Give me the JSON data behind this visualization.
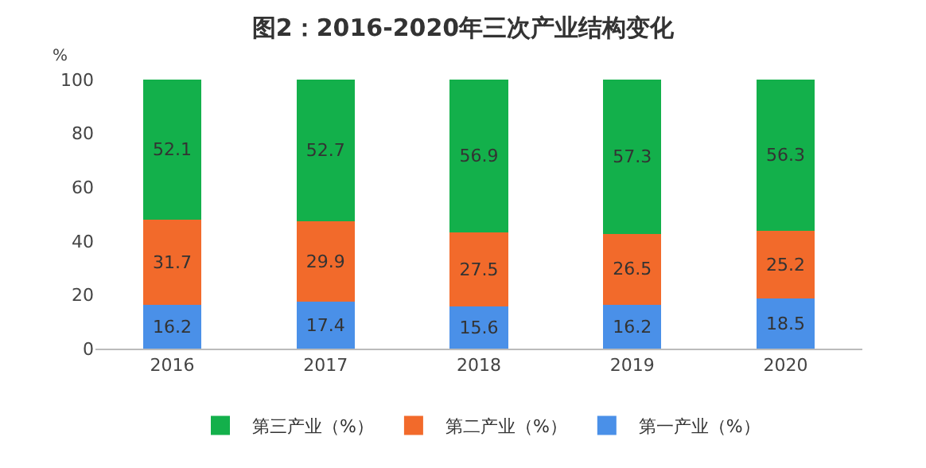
{
  "chart_data": {
    "type": "bar",
    "title": "图2：2016-2020年三次产业结构变化",
    "ylabel": "%",
    "categories": [
      "2016",
      "2017",
      "2018",
      "2019",
      "2020"
    ],
    "series": [
      {
        "name": "第一产业（%）",
        "color": "#4a90e8",
        "values": [
          16.2,
          17.4,
          15.6,
          16.2,
          18.5
        ]
      },
      {
        "name": "第二产业（%）",
        "color": "#f26a2b",
        "values": [
          31.7,
          29.9,
          27.5,
          26.5,
          25.2
        ]
      },
      {
        "name": "第三产业（%）",
        "color": "#13b04b",
        "values": [
          52.1,
          52.7,
          56.9,
          57.3,
          56.3
        ]
      }
    ],
    "stacked": true,
    "data_labels": true,
    "ylim": [
      0,
      100
    ],
    "yticks": [
      0,
      20,
      40,
      60,
      80,
      100
    ],
    "grid": false,
    "legend": "bottom"
  }
}
